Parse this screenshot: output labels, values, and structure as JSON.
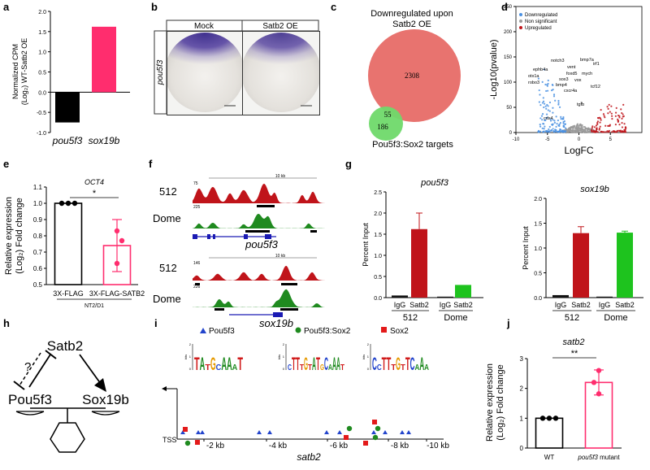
{
  "panels": {
    "a": {
      "letter": "a"
    },
    "b": {
      "letter": "b",
      "col1": "Mock",
      "col2": "Satb2 OE",
      "row_label": "pou5f3"
    },
    "c": {
      "letter": "c",
      "title_line1": "Downregulated upon",
      "title_line2": "Satb2 OE",
      "big_count": "2308",
      "overlap_count": "55",
      "small_count": "186",
      "bottom_label": "Pou5f3:Sox2 targets"
    },
    "d": {
      "letter": "d",
      "legend": [
        "Downregulated",
        "Non significant",
        "Upregulated"
      ],
      "genes": [
        "notch3",
        "bmp7a",
        "vent",
        "irf1",
        "ephb4a",
        "foxd5",
        "mych",
        "otx1a",
        "sox3",
        "robo3",
        "bmp4",
        "vox",
        "tcf12",
        "cxcr4a",
        "tgfb",
        "cdx4"
      ]
    },
    "e": {
      "letter": "e",
      "cell_line": "NT2/D1"
    },
    "f": {
      "letter": "f",
      "scale": "10 kb",
      "track1": "512",
      "track2": "Dome",
      "gene1": "pou5f3",
      "gene2": "sox19b",
      "ymax": [
        "75",
        "225",
        "146",
        "226"
      ]
    },
    "g": {
      "letter": "g"
    },
    "h": {
      "letter": "h",
      "top": "Satb2",
      "left": "Pou5f3",
      "right": "Sox19b",
      "question": "?"
    },
    "i": {
      "letter": "i",
      "motifs": [
        "Pou5f3",
        "Pou5f3:Sox2",
        "Sox2"
      ],
      "tss": "TSS",
      "gene": "satb2",
      "ticks": [
        "-2 kb",
        "-4 kb",
        "-6 kb",
        "-8 kb",
        "-10 kb"
      ],
      "logo_ylabel": "bits",
      "logo_ticks": [
        "2",
        "1",
        "0"
      ]
    },
    "j": {
      "letter": "j"
    }
  },
  "chart_data": [
    {
      "panel": "a",
      "type": "bar",
      "categories": [
        "pou5f3",
        "sox19b"
      ],
      "values": [
        -0.75,
        1.62
      ],
      "colors": [
        "#000000",
        "#ff2d6e"
      ],
      "ylabel": "Normalized CPM (Log₂) WT-Satb2 OE",
      "ylim": [
        -1.0,
        2.0
      ],
      "yticks": [
        "2.0",
        "1.5",
        "1.0",
        "0.5",
        "0.0",
        "-0.5",
        "-1.0"
      ]
    },
    {
      "panel": "d",
      "type": "scatter",
      "xlabel": "LogFC",
      "ylabel": "-Log10(pvalue)",
      "xlim": [
        -10,
        10
      ],
      "ylim": [
        0,
        250
      ],
      "xticks": [
        "-10",
        "-5",
        "0",
        "5"
      ],
      "yticks": [
        "250",
        "200",
        "150",
        "100",
        "50",
        "0"
      ],
      "series": [
        {
          "name": "Downregulated",
          "color": "#4a90e2"
        },
        {
          "name": "Non significant",
          "color": "#9a9a9a"
        },
        {
          "name": "Upregulated",
          "color": "#c0141a"
        }
      ]
    },
    {
      "panel": "e",
      "type": "bar",
      "categories": [
        "3X-FLAG",
        "3X-FLAG-SATB2"
      ],
      "values": [
        1.0,
        0.74
      ],
      "errors": [
        0.0,
        0.16
      ],
      "points": [
        [
          1.0,
          1.0,
          1.0
        ],
        [
          0.83,
          0.77,
          0.63
        ]
      ],
      "colors": [
        "#000000",
        "#ff2d6e"
      ],
      "ylabel": "Relative expression (Log₂) Fold change",
      "ylim": [
        0.5,
        1.1
      ],
      "yticks": [
        "1.1",
        "1.0",
        "0.9",
        "0.8",
        "0.7",
        "0.6",
        "0.5"
      ],
      "annotation_gene": "OCT4",
      "significance": "*"
    },
    {
      "panel": "g1",
      "type": "bar",
      "title": "pou5f3",
      "categories": [
        "IgG",
        "Satb2",
        "IgG",
        "Satb2"
      ],
      "groups": [
        "512",
        "Dome"
      ],
      "values": [
        0.05,
        1.62,
        0.0,
        0.3
      ],
      "errors": [
        0.0,
        0.38,
        0.0,
        0.0
      ],
      "colors": [
        "#111111",
        "#c0141a",
        "#111111",
        "#1ec31e"
      ],
      "ylabel": "Percent Input",
      "ylim": [
        0,
        2.5
      ],
      "yticks": [
        "2.5",
        "2.0",
        "1.5",
        "1.0",
        "0.5",
        "0.0"
      ]
    },
    {
      "panel": "g2",
      "type": "bar",
      "title": "sox19b",
      "categories": [
        "IgG",
        "Satb2",
        "IgG",
        "Satb2"
      ],
      "groups": [
        "512",
        "Dome"
      ],
      "values": [
        0.05,
        1.3,
        0.02,
        1.31
      ],
      "errors": [
        0.0,
        0.13,
        0.0,
        0.03
      ],
      "colors": [
        "#111111",
        "#c0141a",
        "#111111",
        "#1ec31e"
      ],
      "ylabel": "Percent Input",
      "ylim": [
        0,
        2.0
      ],
      "yticks": [
        "2.0",
        "1.5",
        "1.0",
        "0.5",
        "0.0"
      ]
    },
    {
      "panel": "j",
      "type": "bar",
      "title": "satb2",
      "categories": [
        "WT",
        "pou5f3 mutant"
      ],
      "values": [
        1.0,
        2.2
      ],
      "errors": [
        0.0,
        0.42
      ],
      "points": [
        [
          1.0,
          1.0,
          1.0
        ],
        [
          2.6,
          2.2,
          1.82
        ]
      ],
      "colors": [
        "#000000",
        "#ff2d6e"
      ],
      "ylabel": "Relative expression (Log₂) Fold change",
      "ylim": [
        0,
        3
      ],
      "yticks": [
        "3",
        "2",
        "1",
        "0"
      ],
      "significance": "**"
    }
  ]
}
